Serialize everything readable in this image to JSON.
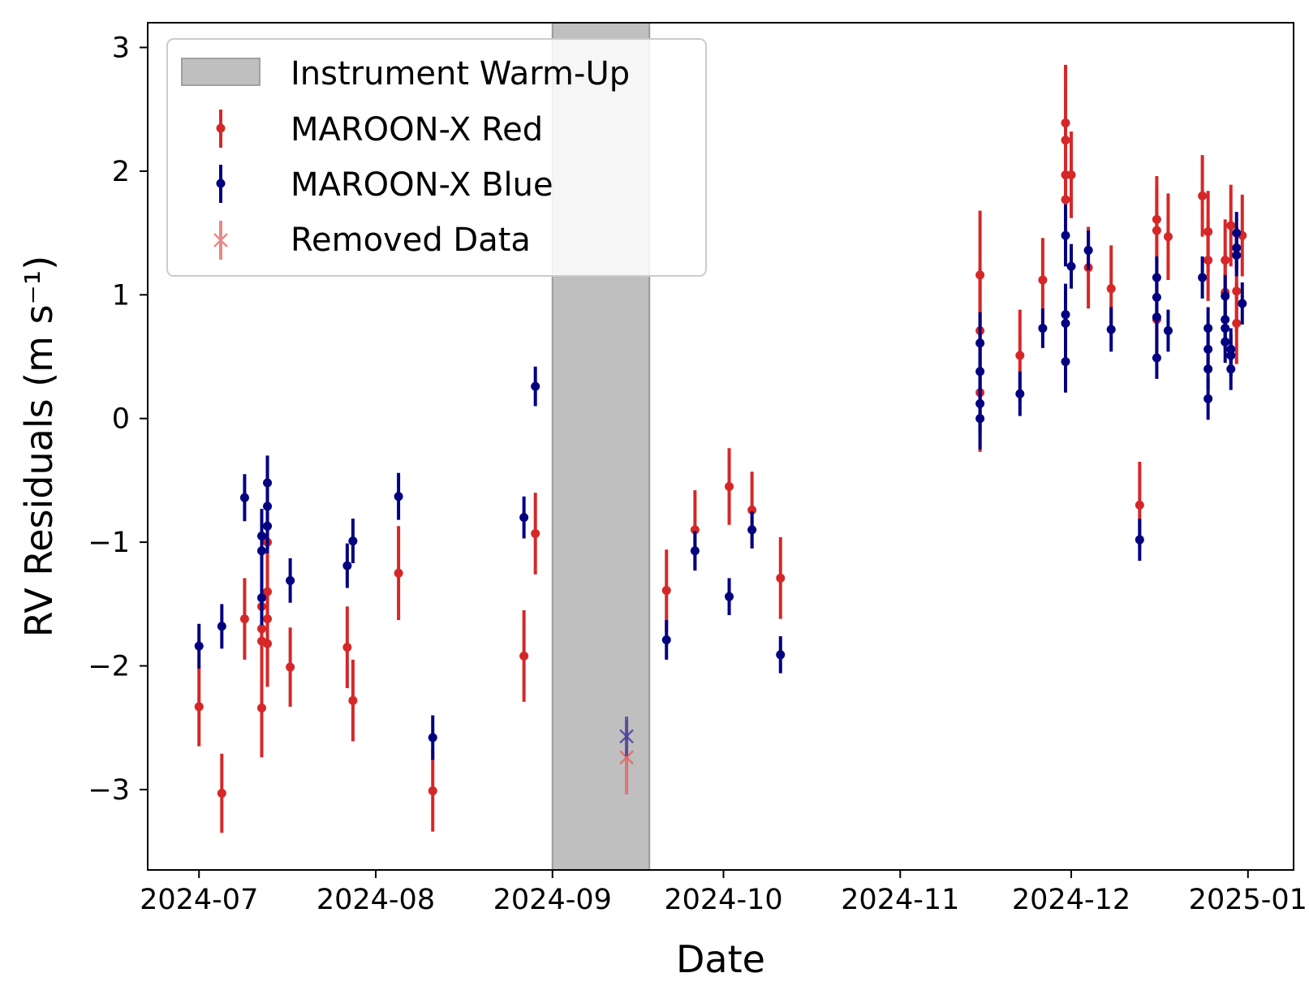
{
  "chart_data": {
    "type": "scatter",
    "title": "",
    "xlabel": "Date",
    "ylabel": "RV Residuals (m s⁻¹)",
    "xlim": [
      "2024-06-22",
      "2025-01-09"
    ],
    "ylim": [
      -3.65,
      3.2
    ],
    "x_ticks": [
      "2024-07",
      "2024-08",
      "2024-09",
      "2024-10",
      "2024-11",
      "2024-12",
      "2025-01"
    ],
    "y_ticks": [
      {
        "value": 3,
        "label": "3"
      },
      {
        "value": 2,
        "label": "2"
      },
      {
        "value": 1,
        "label": "1"
      },
      {
        "value": 0,
        "label": "0"
      },
      {
        "value": -1,
        "label": "−1"
      },
      {
        "value": -2,
        "label": "−2"
      },
      {
        "value": -3,
        "label": "−3"
      }
    ],
    "grid": false,
    "legend_position": "top-left",
    "shaded_region": {
      "name": "Instrument Warm-Up",
      "start": "2024-09-01",
      "end": "2024-09-18",
      "color": "#bfbfbf"
    },
    "series": [
      {
        "name": "MAROON-X Red",
        "color": "#d62728",
        "marker": "dot",
        "points": [
          {
            "x": "2024-07-01",
            "y": -2.33,
            "err": 0.32
          },
          {
            "x": "2024-07-05",
            "y": -3.03,
            "err": 0.32
          },
          {
            "x": "2024-07-09",
            "y": -1.62,
            "err": 0.33
          },
          {
            "x": "2024-07-12",
            "y": -2.34,
            "err": 0.4
          },
          {
            "x": "2024-07-12",
            "y": -1.52,
            "err": 0.3
          },
          {
            "x": "2024-07-12",
            "y": -1.7,
            "err": 0.3
          },
          {
            "x": "2024-07-12",
            "y": -1.8,
            "err": 0.3
          },
          {
            "x": "2024-07-13",
            "y": -1.0,
            "err": 0.3
          },
          {
            "x": "2024-07-13",
            "y": -1.4,
            "err": 0.3
          },
          {
            "x": "2024-07-13",
            "y": -1.62,
            "err": 0.3
          },
          {
            "x": "2024-07-13",
            "y": -1.82,
            "err": 0.35
          },
          {
            "x": "2024-07-17",
            "y": -2.01,
            "err": 0.32
          },
          {
            "x": "2024-07-27",
            "y": -1.85,
            "err": 0.33
          },
          {
            "x": "2024-07-28",
            "y": -2.28,
            "err": 0.33
          },
          {
            "x": "2024-08-05",
            "y": -1.25,
            "err": 0.38
          },
          {
            "x": "2024-08-11",
            "y": -3.01,
            "err": 0.33
          },
          {
            "x": "2024-08-27",
            "y": -1.92,
            "err": 0.37
          },
          {
            "x": "2024-08-29",
            "y": -0.93,
            "err": 0.33
          },
          {
            "x": "2024-09-21",
            "y": -1.39,
            "err": 0.33
          },
          {
            "x": "2024-09-26",
            "y": -0.9,
            "err": 0.32
          },
          {
            "x": "2024-10-02",
            "y": -0.55,
            "err": 0.31
          },
          {
            "x": "2024-10-06",
            "y": -0.74,
            "err": 0.31
          },
          {
            "x": "2024-10-11",
            "y": -1.29,
            "err": 0.33
          },
          {
            "x": "2024-11-15",
            "y": 1.16,
            "err": 0.52
          },
          {
            "x": "2024-11-15",
            "y": 0.71,
            "err": 0.5
          },
          {
            "x": "2024-11-15",
            "y": 0.21,
            "err": 0.48
          },
          {
            "x": "2024-11-22",
            "y": 0.51,
            "err": 0.37
          },
          {
            "x": "2024-11-26",
            "y": 1.12,
            "err": 0.34
          },
          {
            "x": "2024-11-30",
            "y": 2.39,
            "err": 0.47
          },
          {
            "x": "2024-11-30",
            "y": 2.25,
            "err": 0.4
          },
          {
            "x": "2024-11-30",
            "y": 1.97,
            "err": 0.4
          },
          {
            "x": "2024-11-30",
            "y": 1.77,
            "err": 0.35
          },
          {
            "x": "2024-12-01",
            "y": 1.97,
            "err": 0.35
          },
          {
            "x": "2024-12-04",
            "y": 1.22,
            "err": 0.33
          },
          {
            "x": "2024-12-08",
            "y": 1.05,
            "err": 0.35
          },
          {
            "x": "2024-12-13",
            "y": -0.7,
            "err": 0.35
          },
          {
            "x": "2024-12-16",
            "y": 1.61,
            "err": 0.35
          },
          {
            "x": "2024-12-16",
            "y": 1.52,
            "err": 0.35
          },
          {
            "x": "2024-12-16",
            "y": 0.8,
            "err": 0.3
          },
          {
            "x": "2024-12-18",
            "y": 1.47,
            "err": 0.35
          },
          {
            "x": "2024-12-24",
            "y": 1.8,
            "err": 0.33
          },
          {
            "x": "2024-12-25",
            "y": 1.51,
            "err": 0.33
          },
          {
            "x": "2024-12-25",
            "y": 1.28,
            "err": 0.33
          },
          {
            "x": "2024-12-28",
            "y": 1.28,
            "err": 0.33
          },
          {
            "x": "2024-12-28",
            "y": 1.02,
            "err": 0.33
          },
          {
            "x": "2024-12-29",
            "y": 1.56,
            "err": 0.33
          },
          {
            "x": "2024-12-30",
            "y": 1.03,
            "err": 0.33
          },
          {
            "x": "2024-12-30",
            "y": 0.77,
            "err": 0.33
          },
          {
            "x": "2024-12-31",
            "y": 1.48,
            "err": 0.33
          }
        ]
      },
      {
        "name": "MAROON-X Blue",
        "color": "#000080",
        "marker": "dot",
        "points": [
          {
            "x": "2024-07-01",
            "y": -1.84,
            "err": 0.18
          },
          {
            "x": "2024-07-05",
            "y": -1.68,
            "err": 0.18
          },
          {
            "x": "2024-07-09",
            "y": -0.64,
            "err": 0.19
          },
          {
            "x": "2024-07-12",
            "y": -0.95,
            "err": 0.22
          },
          {
            "x": "2024-07-12",
            "y": -1.07,
            "err": 0.22
          },
          {
            "x": "2024-07-12",
            "y": -1.45,
            "err": 0.22
          },
          {
            "x": "2024-07-13",
            "y": -0.52,
            "err": 0.22
          },
          {
            "x": "2024-07-13",
            "y": -0.71,
            "err": 0.22
          },
          {
            "x": "2024-07-13",
            "y": -0.87,
            "err": 0.22
          },
          {
            "x": "2024-07-17",
            "y": -1.31,
            "err": 0.18
          },
          {
            "x": "2024-07-27",
            "y": -1.19,
            "err": 0.18
          },
          {
            "x": "2024-07-28",
            "y": -0.99,
            "err": 0.18
          },
          {
            "x": "2024-08-05",
            "y": -0.63,
            "err": 0.19
          },
          {
            "x": "2024-08-11",
            "y": -2.58,
            "err": 0.18
          },
          {
            "x": "2024-08-27",
            "y": -0.8,
            "err": 0.17
          },
          {
            "x": "2024-08-29",
            "y": 0.26,
            "err": 0.16
          },
          {
            "x": "2024-09-21",
            "y": -1.79,
            "err": 0.16
          },
          {
            "x": "2024-09-26",
            "y": -1.07,
            "err": 0.16
          },
          {
            "x": "2024-10-02",
            "y": -1.44,
            "err": 0.15
          },
          {
            "x": "2024-10-06",
            "y": -0.9,
            "err": 0.15
          },
          {
            "x": "2024-10-11",
            "y": -1.91,
            "err": 0.15
          },
          {
            "x": "2024-11-15",
            "y": 0.61,
            "err": 0.25
          },
          {
            "x": "2024-11-15",
            "y": 0.38,
            "err": 0.25
          },
          {
            "x": "2024-11-15",
            "y": 0.12,
            "err": 0.25
          },
          {
            "x": "2024-11-15",
            "y": 0.0,
            "err": 0.25
          },
          {
            "x": "2024-11-22",
            "y": 0.2,
            "err": 0.18
          },
          {
            "x": "2024-11-26",
            "y": 0.73,
            "err": 0.16
          },
          {
            "x": "2024-11-30",
            "y": 1.48,
            "err": 0.25
          },
          {
            "x": "2024-11-30",
            "y": 0.84,
            "err": 0.25
          },
          {
            "x": "2024-11-30",
            "y": 0.77,
            "err": 0.25
          },
          {
            "x": "2024-11-30",
            "y": 0.46,
            "err": 0.25
          },
          {
            "x": "2024-12-01",
            "y": 1.23,
            "err": 0.18
          },
          {
            "x": "2024-12-04",
            "y": 1.36,
            "err": 0.16
          },
          {
            "x": "2024-12-08",
            "y": 0.72,
            "err": 0.18
          },
          {
            "x": "2024-12-13",
            "y": -0.98,
            "err": 0.17
          },
          {
            "x": "2024-12-16",
            "y": 1.14,
            "err": 0.17
          },
          {
            "x": "2024-12-16",
            "y": 0.98,
            "err": 0.17
          },
          {
            "x": "2024-12-16",
            "y": 0.82,
            "err": 0.17
          },
          {
            "x": "2024-12-16",
            "y": 0.49,
            "err": 0.17
          },
          {
            "x": "2024-12-18",
            "y": 0.71,
            "err": 0.17
          },
          {
            "x": "2024-12-24",
            "y": 1.14,
            "err": 0.17
          },
          {
            "x": "2024-12-25",
            "y": 0.73,
            "err": 0.17
          },
          {
            "x": "2024-12-25",
            "y": 0.56,
            "err": 0.17
          },
          {
            "x": "2024-12-25",
            "y": 0.4,
            "err": 0.17
          },
          {
            "x": "2024-12-25",
            "y": 0.16,
            "err": 0.17
          },
          {
            "x": "2024-12-28",
            "y": 0.99,
            "err": 0.17
          },
          {
            "x": "2024-12-28",
            "y": 0.8,
            "err": 0.17
          },
          {
            "x": "2024-12-28",
            "y": 0.73,
            "err": 0.17
          },
          {
            "x": "2024-12-28",
            "y": 0.62,
            "err": 0.17
          },
          {
            "x": "2024-12-29",
            "y": 0.56,
            "err": 0.17
          },
          {
            "x": "2024-12-29",
            "y": 0.51,
            "err": 0.17
          },
          {
            "x": "2024-12-29",
            "y": 0.4,
            "err": 0.17
          },
          {
            "x": "2024-12-30",
            "y": 1.5,
            "err": 0.17
          },
          {
            "x": "2024-12-30",
            "y": 1.38,
            "err": 0.17
          },
          {
            "x": "2024-12-30",
            "y": 1.32,
            "err": 0.17
          },
          {
            "x": "2024-12-31",
            "y": 0.93,
            "err": 0.17
          }
        ]
      },
      {
        "name": "Removed Data",
        "color": "#d62728",
        "marker": "x",
        "points": [
          {
            "x": "2024-09-14",
            "y": -2.74,
            "err": 0.3,
            "color": "#e06666"
          },
          {
            "x": "2024-09-14",
            "y": -2.57,
            "err": 0.16,
            "color": "#3f3fa6"
          }
        ]
      }
    ]
  }
}
